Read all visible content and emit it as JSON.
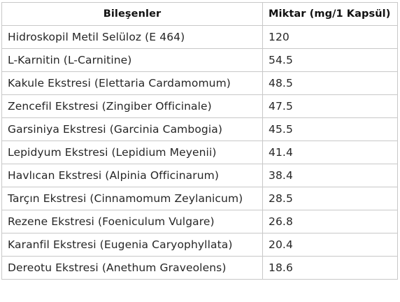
{
  "table": {
    "headers": [
      "Bileşenler",
      "Miktar (mg/1 Kapsül)"
    ],
    "rows": [
      {
        "ingredient": "Hidroskopil Metil Selüloz (E 464)",
        "amount": "120"
      },
      {
        "ingredient": "L-Karnitin (L-Carnitine)",
        "amount": "54.5"
      },
      {
        "ingredient": "Kakule Ekstresi (Elettaria Cardamomum)",
        "amount": "48.5"
      },
      {
        "ingredient": "Zencefil Ekstresi (Zingiber Officinale)",
        "amount": "47.5"
      },
      {
        "ingredient": "Garsiniya Ekstresi (Garcinia Cambogia)",
        "amount": "45.5"
      },
      {
        "ingredient": "Lepidyum Ekstresi (Lepidium Meyenii)",
        "amount": "41.4"
      },
      {
        "ingredient": "Havlıcan Ekstresi (Alpinia Officinarum)",
        "amount": "38.4"
      },
      {
        "ingredient": "Tarçın Ekstresi (Cinnamomum Zeylanicum)",
        "amount": "28.5"
      },
      {
        "ingredient": "Rezene Ekstresi (Foeniculum Vulgare)",
        "amount": "26.8"
      },
      {
        "ingredient": "Karanfil Ekstresi (Eugenia Caryophyllata)",
        "amount": "20.4"
      },
      {
        "ingredient": "Dereotu Ekstresi (Anethum Graveolens)",
        "amount": "18.6"
      }
    ]
  },
  "colors": {
    "border": "#c8c8c8",
    "text": "#262626",
    "header_text": "#111111",
    "background": "#ffffff"
  }
}
